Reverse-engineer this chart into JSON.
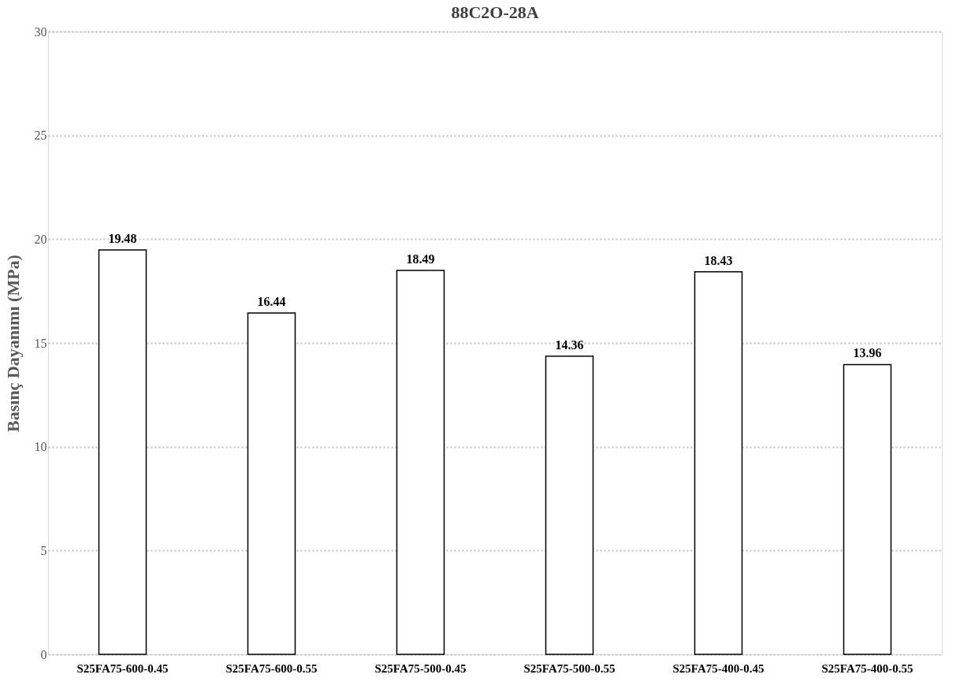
{
  "chart_data": {
    "type": "bar",
    "title": "88C2O-28A",
    "ylabel": "Basınç Dayanımı (MPa)",
    "categories": [
      "S25FA75-600-0.45",
      "S25FA75-600-0.55",
      "S25FA75-500-0.45",
      "S25FA75-500-0.55",
      "S25FA75-400-0.45",
      "S25FA75-400-0.55"
    ],
    "values": [
      19.48,
      16.44,
      18.49,
      14.36,
      18.43,
      13.96
    ],
    "color": "#ffffff",
    "ylim": [
      0,
      30
    ],
    "yticks": [
      0,
      5,
      10,
      15,
      20,
      25,
      30
    ],
    "grid": "y",
    "data_labels": true
  }
}
